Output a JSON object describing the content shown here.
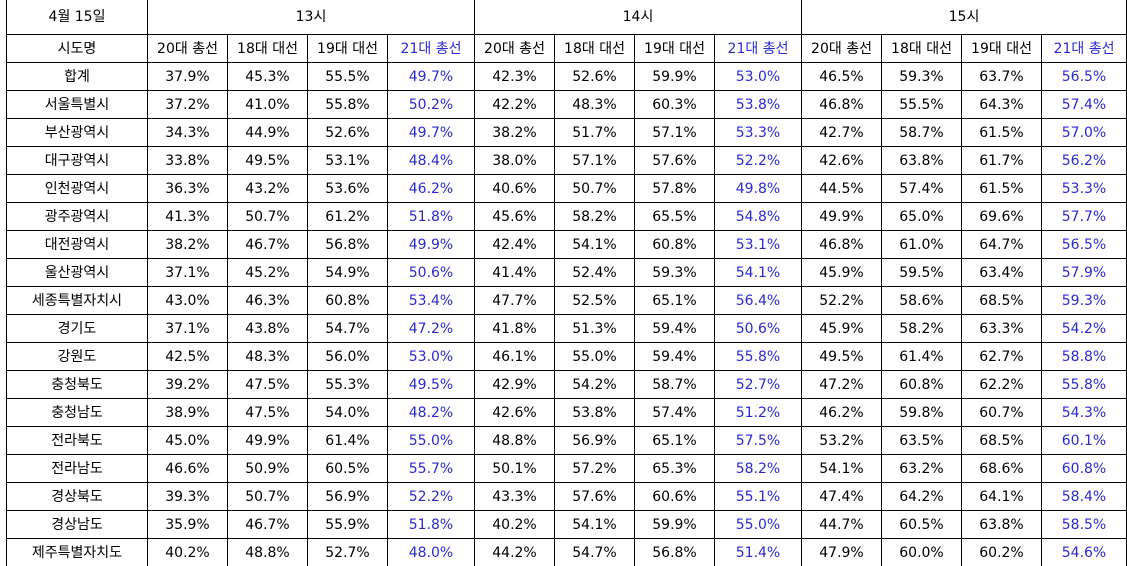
{
  "header": {
    "date": "4월 15일",
    "region_col": "시도명",
    "hours": [
      "13시",
      "14시",
      "15시"
    ],
    "elections": [
      "20대 총선",
      "18대 대선",
      "19대 대선",
      "21대 총선"
    ]
  },
  "colors": {
    "highlight": "#2a2ad4",
    "text": "#000000",
    "grid": "#000000"
  },
  "rows": [
    {
      "region": "합계",
      "values": [
        "37.9%",
        "45.3%",
        "55.5%",
        "49.7%",
        "42.3%",
        "52.6%",
        "59.9%",
        "53.0%",
        "46.5%",
        "59.3%",
        "63.7%",
        "56.5%"
      ]
    },
    {
      "region": "서울특별시",
      "values": [
        "37.2%",
        "41.0%",
        "55.8%",
        "50.2%",
        "42.2%",
        "48.3%",
        "60.3%",
        "53.8%",
        "46.8%",
        "55.5%",
        "64.3%",
        "57.4%"
      ]
    },
    {
      "region": "부산광역시",
      "values": [
        "34.3%",
        "44.9%",
        "52.6%",
        "49.7%",
        "38.2%",
        "51.7%",
        "57.1%",
        "53.3%",
        "42.7%",
        "58.7%",
        "61.5%",
        "57.0%"
      ]
    },
    {
      "region": "대구광역시",
      "values": [
        "33.8%",
        "49.5%",
        "53.1%",
        "48.4%",
        "38.0%",
        "57.1%",
        "57.6%",
        "52.2%",
        "42.6%",
        "63.8%",
        "61.7%",
        "56.2%"
      ]
    },
    {
      "region": "인천광역시",
      "values": [
        "36.3%",
        "43.2%",
        "53.6%",
        "46.2%",
        "40.6%",
        "50.7%",
        "57.8%",
        "49.8%",
        "44.5%",
        "57.4%",
        "61.5%",
        "53.3%"
      ]
    },
    {
      "region": "광주광역시",
      "values": [
        "41.3%",
        "50.7%",
        "61.2%",
        "51.8%",
        "45.6%",
        "58.2%",
        "65.5%",
        "54.8%",
        "49.9%",
        "65.0%",
        "69.6%",
        "57.7%"
      ]
    },
    {
      "region": "대전광역시",
      "values": [
        "38.2%",
        "46.7%",
        "56.8%",
        "49.9%",
        "42.4%",
        "54.1%",
        "60.8%",
        "53.1%",
        "46.8%",
        "61.0%",
        "64.7%",
        "56.5%"
      ]
    },
    {
      "region": "울산광역시",
      "values": [
        "37.1%",
        "45.2%",
        "54.9%",
        "50.6%",
        "41.4%",
        "52.4%",
        "59.3%",
        "54.1%",
        "45.9%",
        "59.5%",
        "63.4%",
        "57.9%"
      ]
    },
    {
      "region": "세종특별자치시",
      "values": [
        "43.0%",
        "46.3%",
        "60.8%",
        "53.4%",
        "47.7%",
        "52.5%",
        "65.1%",
        "56.4%",
        "52.2%",
        "58.6%",
        "68.5%",
        "59.3%"
      ]
    },
    {
      "region": "경기도",
      "values": [
        "37.1%",
        "43.8%",
        "54.7%",
        "47.2%",
        "41.8%",
        "51.3%",
        "59.4%",
        "50.6%",
        "45.9%",
        "58.2%",
        "63.3%",
        "54.2%"
      ]
    },
    {
      "region": "강원도",
      "values": [
        "42.5%",
        "48.3%",
        "56.0%",
        "53.0%",
        "46.1%",
        "55.0%",
        "59.4%",
        "55.8%",
        "49.5%",
        "61.4%",
        "62.7%",
        "58.8%"
      ]
    },
    {
      "region": "충청북도",
      "values": [
        "39.2%",
        "47.5%",
        "55.3%",
        "49.5%",
        "42.9%",
        "54.2%",
        "58.7%",
        "52.7%",
        "47.2%",
        "60.8%",
        "62.2%",
        "55.8%"
      ]
    },
    {
      "region": "충청남도",
      "values": [
        "38.9%",
        "47.5%",
        "54.0%",
        "48.2%",
        "42.6%",
        "53.8%",
        "57.4%",
        "51.2%",
        "46.2%",
        "59.8%",
        "60.7%",
        "54.3%"
      ]
    },
    {
      "region": "전라북도",
      "values": [
        "45.0%",
        "49.9%",
        "61.4%",
        "55.0%",
        "48.8%",
        "56.9%",
        "65.1%",
        "57.5%",
        "53.2%",
        "63.5%",
        "68.5%",
        "60.1%"
      ]
    },
    {
      "region": "전라남도",
      "values": [
        "46.6%",
        "50.9%",
        "60.5%",
        "55.7%",
        "50.1%",
        "57.2%",
        "65.3%",
        "58.2%",
        "54.1%",
        "63.2%",
        "68.6%",
        "60.8%"
      ]
    },
    {
      "region": "경상북도",
      "values": [
        "39.3%",
        "50.7%",
        "56.9%",
        "52.2%",
        "43.3%",
        "57.6%",
        "60.6%",
        "55.1%",
        "47.4%",
        "64.2%",
        "64.1%",
        "58.4%"
      ]
    },
    {
      "region": "경상남도",
      "values": [
        "35.9%",
        "46.7%",
        "55.9%",
        "51.8%",
        "40.2%",
        "54.1%",
        "59.9%",
        "55.0%",
        "44.7%",
        "60.5%",
        "63.8%",
        "58.5%"
      ]
    },
    {
      "region": "제주특별자치도",
      "values": [
        "40.2%",
        "48.8%",
        "52.7%",
        "48.0%",
        "44.2%",
        "54.7%",
        "56.8%",
        "51.4%",
        "47.9%",
        "60.0%",
        "60.2%",
        "54.6%"
      ]
    }
  ]
}
